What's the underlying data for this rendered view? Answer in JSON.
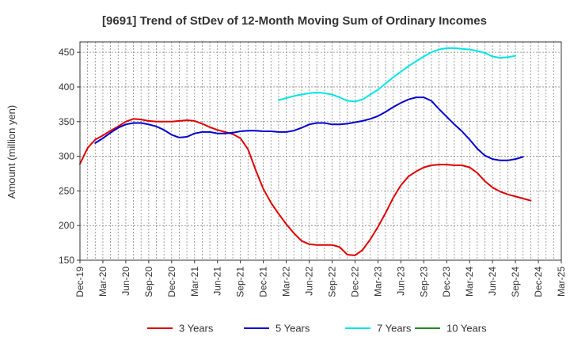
{
  "chart_data": {
    "type": "line",
    "title": "[9691]  Trend of StDev of 12-Month Moving Sum of Ordinary Incomes",
    "xlabel": "",
    "ylabel": "Amount (million yen)",
    "ylim": [
      150,
      465
    ],
    "yticks": [
      150,
      200,
      250,
      300,
      350,
      400,
      450
    ],
    "x_start": "2019-12",
    "x_months": 63,
    "xtick_labels": [
      "Dec-19",
      "Mar-20",
      "Jun-20",
      "Sep-20",
      "Dec-20",
      "Mar-21",
      "Jun-21",
      "Sep-21",
      "Dec-21",
      "Mar-22",
      "Jun-22",
      "Sep-22",
      "Dec-22",
      "Mar-23",
      "Jun-23",
      "Sep-23",
      "Dec-23",
      "Mar-24",
      "Jun-24",
      "Sep-24",
      "Dec-24",
      "Mar-25"
    ],
    "grid": true,
    "legend_position": "bottom",
    "series": [
      {
        "name": "3 Years",
        "color": "#dd0000",
        "start_index": 0,
        "values": [
          289,
          312,
          324,
          330,
          337,
          343,
          350,
          354,
          353,
          351,
          350,
          350,
          350,
          351,
          352,
          351,
          347,
          342,
          338,
          335,
          332,
          326,
          310,
          280,
          253,
          233,
          217,
          202,
          189,
          178,
          173,
          172,
          172,
          172,
          169,
          158,
          157,
          165,
          180,
          198,
          218,
          240,
          258,
          271,
          278,
          284,
          287,
          288,
          288,
          287,
          287,
          284,
          276,
          264,
          255,
          249,
          245,
          242,
          239,
          236
        ]
      },
      {
        "name": "5 Years",
        "color": "#0000cc",
        "start_index": 2,
        "values": [
          319,
          326,
          334,
          341,
          346,
          348,
          348,
          346,
          343,
          338,
          331,
          327,
          328,
          333,
          335,
          335,
          333,
          333,
          334,
          336,
          337,
          337,
          336,
          336,
          335,
          335,
          337,
          341,
          346,
          348,
          348,
          346,
          346,
          347,
          349,
          351,
          354,
          358,
          364,
          371,
          377,
          382,
          385,
          385,
          380,
          368,
          357,
          346,
          336,
          324,
          311,
          301,
          296,
          294,
          294,
          296,
          299
        ]
      },
      {
        "name": "7 Years",
        "color": "#00e5e5",
        "start_index": 26,
        "values": [
          381,
          384,
          387,
          389,
          391,
          392,
          391,
          389,
          385,
          380,
          379,
          382,
          389,
          396,
          405,
          414,
          422,
          430,
          437,
          444,
          450,
          454,
          456,
          456,
          455,
          454,
          452,
          449,
          444,
          442,
          443,
          445
        ]
      },
      {
        "name": "10 Years",
        "color": "#228b22",
        "start_index": 0,
        "values": []
      }
    ]
  }
}
